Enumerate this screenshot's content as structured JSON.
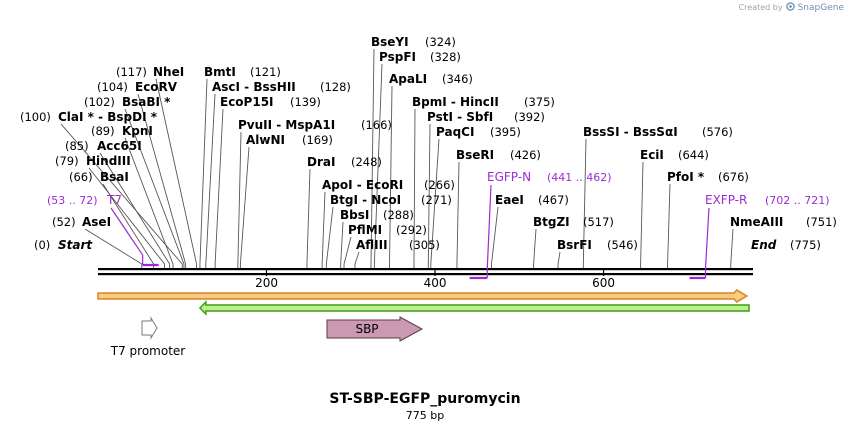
{
  "credit": {
    "text": "Created by",
    "brand": "SnapGene"
  },
  "map": {
    "title": "ST-SBP-EGFP_puromycin",
    "length_label": "775 bp",
    "length": 775,
    "ticks": [
      {
        "label": "200",
        "pos": 200
      },
      {
        "label": "400",
        "pos": 400
      },
      {
        "label": "600",
        "pos": 600
      }
    ],
    "sites": [
      {
        "name": "Start",
        "pos_label": "(0)",
        "pos": 0
      },
      {
        "name": "AseI",
        "pos_label": "(52)",
        "pos": 52
      },
      {
        "name": "BsaI",
        "pos_label": "(66)",
        "pos": 66
      },
      {
        "name": "HindIII",
        "pos_label": "(79)",
        "pos": 79
      },
      {
        "name": "Acc65I",
        "pos_label": "(85)",
        "pos": 85
      },
      {
        "name": "KpnI",
        "pos_label": "(89)",
        "pos": 89
      },
      {
        "name": "ClaI *  - BspDI *",
        "pos_label": "(100)",
        "pos": 100
      },
      {
        "name": "BsaBI *",
        "pos_label": "(102)",
        "pos": 102
      },
      {
        "name": "EcoRV",
        "pos_label": "(104)",
        "pos": 104
      },
      {
        "name": "NheI",
        "pos_label": "(117)",
        "pos": 117
      },
      {
        "name": "BmtI",
        "pos_label": "(121)",
        "pos": 121
      },
      {
        "name": "AscI  - BssHII",
        "pos_label": "(128)",
        "pos": 128
      },
      {
        "name": "EcoP15I",
        "pos_label": "(139)",
        "pos": 139
      },
      {
        "name": "PvuII  - MspA1I",
        "pos_label": "(166)",
        "pos": 166
      },
      {
        "name": "AlwNI",
        "pos_label": "(169)",
        "pos": 169
      },
      {
        "name": "DraI",
        "pos_label": "(248)",
        "pos": 248
      },
      {
        "name": "ApoI  - EcoRI",
        "pos_label": "(266)",
        "pos": 266
      },
      {
        "name": "BtgI  - NcoI",
        "pos_label": "(271)",
        "pos": 271
      },
      {
        "name": "BbsI",
        "pos_label": "(288)",
        "pos": 288
      },
      {
        "name": "PflMI",
        "pos_label": "(292)",
        "pos": 292
      },
      {
        "name": "AflIII",
        "pos_label": "(305)",
        "pos": 305
      },
      {
        "name": "BseYI",
        "pos_label": "(324)",
        "pos": 324
      },
      {
        "name": "PspFI",
        "pos_label": "(328)",
        "pos": 328
      },
      {
        "name": "ApaLI",
        "pos_label": "(346)",
        "pos": 346
      },
      {
        "name": "BpmI  - HincII",
        "pos_label": "(375)",
        "pos": 375
      },
      {
        "name": "PstI  - SbfI",
        "pos_label": "(392)",
        "pos": 392
      },
      {
        "name": "PaqCI",
        "pos_label": "(395)",
        "pos": 395
      },
      {
        "name": "BseRI",
        "pos_label": "(426)",
        "pos": 426
      },
      {
        "name": "EaeI",
        "pos_label": "(467)",
        "pos": 467
      },
      {
        "name": "BtgZI",
        "pos_label": "(517)",
        "pos": 517
      },
      {
        "name": "BsrFI",
        "pos_label": "(546)",
        "pos": 546
      },
      {
        "name": "BssSI  - BssSαI",
        "pos_label": "(576)",
        "pos": 576
      },
      {
        "name": "EciI",
        "pos_label": "(644)",
        "pos": 644
      },
      {
        "name": "PfoI *",
        "pos_label": "(676)",
        "pos": 676
      },
      {
        "name": "NmeAIII",
        "pos_label": "(751)",
        "pos": 751
      },
      {
        "name": "End",
        "pos_label": "(775)",
        "pos": 775
      }
    ],
    "primers": [
      {
        "name": "T7",
        "range_label": "(53 .. 72)",
        "start": 53,
        "end": 72,
        "direction": "forward"
      },
      {
        "name": "EGFP-N",
        "range_label": "(441 .. 462)",
        "start": 441,
        "end": 462,
        "direction": "reverse"
      },
      {
        "name": "EXFP-R",
        "range_label": "(702 .. 721)",
        "start": 702,
        "end": 721,
        "direction": "reverse"
      }
    ],
    "features": [
      {
        "name": "T7 promoter",
        "start": 53,
        "end": 71,
        "color": "#ffffff",
        "stroke": "#7a7a7a"
      },
      {
        "name": "SBP",
        "start": 271,
        "end": 385,
        "color": "#cc99b2",
        "stroke": "#5a3a4a"
      }
    ],
    "colors": {
      "primer": "#9b2bd6",
      "orf_forward_fill": "#f5cc84",
      "orf_forward_stroke": "#d98324",
      "orf_reverse_fill": "#bdf08a",
      "orf_reverse_stroke": "#3e9e1a"
    }
  }
}
